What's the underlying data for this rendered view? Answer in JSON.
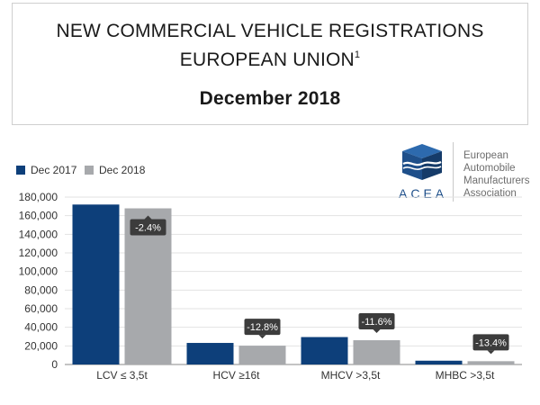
{
  "header": {
    "line1": "NEW COMMERCIAL VEHICLE REGISTRATIONS",
    "line2": "EUROPEAN UNION",
    "line2_sup": "1",
    "line3": "December 2018"
  },
  "logo": {
    "word": "ACEA",
    "text_lines": [
      "European",
      "Automobile",
      "Manufacturers",
      "Association"
    ],
    "color": "#1e4f8a"
  },
  "chart_data": {
    "type": "bar",
    "title": "New commercial vehicle registrations, European Union, December 2018",
    "categories": [
      "LCV ≤ 3,5t",
      "HCV ≥16t",
      "MHCV >3,5t",
      "MHBC >3,5t"
    ],
    "series": [
      {
        "name": "Dec 2017",
        "color": "#0d3f7a",
        "values": [
          172000,
          23200,
          29500,
          4100
        ]
      },
      {
        "name": "Dec 2018",
        "color": "#a7a9ac",
        "values": [
          167900,
          20200,
          26100,
          3550
        ]
      }
    ],
    "annotations": [
      "-2.4%",
      "-12.8%",
      "-11.6%",
      "-13.4%"
    ],
    "ylim": [
      0,
      180000
    ],
    "yticks": [
      0,
      20000,
      40000,
      60000,
      80000,
      100000,
      120000,
      140000,
      160000,
      180000
    ],
    "ytick_labels": [
      "0",
      "20,000",
      "40,000",
      "60,000",
      "80,000",
      "100,000",
      "120,000",
      "140,000",
      "160,000",
      "180,000"
    ],
    "grid": true,
    "legend_position": "top-left",
    "xlabel": "",
    "ylabel": ""
  }
}
